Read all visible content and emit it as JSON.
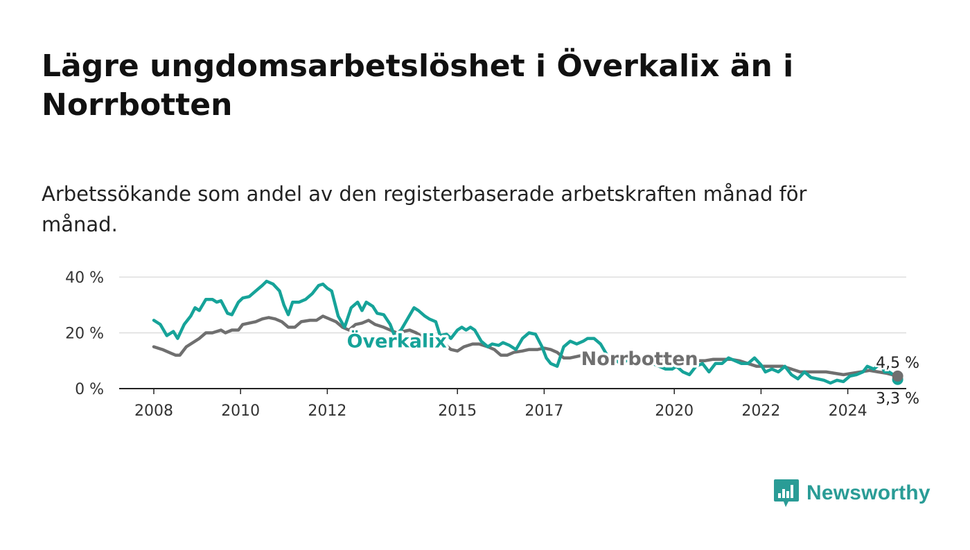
{
  "title": "Lägre ungdomsarbetslöshet i Överkalix än i Norrbotten",
  "subtitle": "Arbetssökande som andel av den registerbaserade arbetskraften månad för månad.",
  "logo": {
    "text": "Newsworthy",
    "icon": "bar-chart-speech-bubble-icon"
  },
  "colors": {
    "overkalix": "#16a399",
    "norrbotten": "#6f6f6f",
    "grid": "#dddddd",
    "axis": "#222222"
  },
  "chart_data": {
    "type": "line",
    "y_ticks": [
      0,
      20,
      40
    ],
    "y_tick_labels": [
      "0 %",
      "20 %",
      "40 %"
    ],
    "ylim": [
      0,
      40
    ],
    "x_ticks": [
      2008,
      2010,
      2012,
      2015,
      2017,
      2020,
      2022,
      2024
    ],
    "x_tick_labels": [
      "2008",
      "2010",
      "2012",
      "2015",
      "2017",
      "2020",
      "2022",
      "2024"
    ],
    "xlim": [
      2007.25,
      2025.35
    ],
    "grid": true,
    "legend": "inline labels",
    "series": [
      {
        "name": "Överkalix",
        "color": "#16a399",
        "label_year": 2012.45,
        "label_value": 17,
        "end_label": "3,3 %",
        "points": [
          [
            2008.0,
            24.5
          ],
          [
            2008.15,
            23
          ],
          [
            2008.3,
            19
          ],
          [
            2008.45,
            20.5
          ],
          [
            2008.55,
            18
          ],
          [
            2008.7,
            23
          ],
          [
            2008.85,
            26
          ],
          [
            2008.95,
            29
          ],
          [
            2009.05,
            28
          ],
          [
            2009.2,
            32
          ],
          [
            2009.35,
            32
          ],
          [
            2009.45,
            31
          ],
          [
            2009.55,
            31.5
          ],
          [
            2009.7,
            27
          ],
          [
            2009.8,
            26.5
          ],
          [
            2009.95,
            31
          ],
          [
            2010.05,
            32.5
          ],
          [
            2010.2,
            33
          ],
          [
            2010.35,
            35
          ],
          [
            2010.5,
            37
          ],
          [
            2010.6,
            38.5
          ],
          [
            2010.75,
            37.5
          ],
          [
            2010.9,
            35
          ],
          [
            2011.0,
            30
          ],
          [
            2011.1,
            26.5
          ],
          [
            2011.2,
            31
          ],
          [
            2011.35,
            31
          ],
          [
            2011.5,
            32
          ],
          [
            2011.65,
            34
          ],
          [
            2011.8,
            37
          ],
          [
            2011.9,
            37.5
          ],
          [
            2012.0,
            36
          ],
          [
            2012.1,
            35
          ],
          [
            2012.25,
            26
          ],
          [
            2012.4,
            22
          ],
          [
            2012.55,
            29
          ],
          [
            2012.7,
            31
          ],
          [
            2012.8,
            28
          ],
          [
            2012.9,
            31
          ],
          [
            2013.05,
            29.5
          ],
          [
            2013.15,
            27
          ],
          [
            2013.3,
            26.5
          ],
          [
            2013.45,
            23
          ],
          [
            2013.55,
            19
          ],
          [
            2013.7,
            21
          ],
          [
            2013.85,
            25
          ],
          [
            2014.0,
            29
          ],
          [
            2014.1,
            28
          ],
          [
            2014.25,
            26
          ],
          [
            2014.35,
            25
          ],
          [
            2014.5,
            24
          ],
          [
            2014.6,
            19
          ],
          [
            2014.75,
            19.5
          ],
          [
            2014.85,
            18
          ],
          [
            2015.0,
            21
          ],
          [
            2015.1,
            22
          ],
          [
            2015.2,
            21
          ],
          [
            2015.3,
            22
          ],
          [
            2015.4,
            21
          ],
          [
            2015.55,
            17
          ],
          [
            2015.7,
            15
          ],
          [
            2015.8,
            16
          ],
          [
            2015.95,
            15.5
          ],
          [
            2016.05,
            16.5
          ],
          [
            2016.2,
            15.5
          ],
          [
            2016.35,
            14
          ],
          [
            2016.5,
            18
          ],
          [
            2016.65,
            20
          ],
          [
            2016.8,
            19.5
          ],
          [
            2016.95,
            15
          ],
          [
            2017.05,
            11
          ],
          [
            2017.15,
            9
          ],
          [
            2017.3,
            8
          ],
          [
            2017.45,
            15
          ],
          [
            2017.6,
            17
          ],
          [
            2017.75,
            16
          ],
          [
            2017.9,
            17
          ],
          [
            2018.0,
            18
          ],
          [
            2018.15,
            18
          ],
          [
            2018.3,
            16
          ],
          [
            2018.45,
            12
          ],
          [
            2018.6,
            11
          ],
          [
            2018.75,
            9
          ],
          [
            2018.9,
            10
          ],
          [
            2019.05,
            13
          ],
          [
            2019.2,
            9
          ],
          [
            2019.35,
            10
          ],
          [
            2019.5,
            9
          ],
          [
            2019.65,
            8
          ],
          [
            2019.8,
            7
          ],
          [
            2019.95,
            7
          ],
          [
            2020.05,
            8
          ],
          [
            2020.2,
            6
          ],
          [
            2020.35,
            5
          ],
          [
            2020.5,
            8
          ],
          [
            2020.65,
            9
          ],
          [
            2020.8,
            6
          ],
          [
            2020.95,
            9
          ],
          [
            2021.1,
            9
          ],
          [
            2021.25,
            11
          ],
          [
            2021.4,
            10
          ],
          [
            2021.55,
            9
          ],
          [
            2021.7,
            9
          ],
          [
            2021.85,
            11
          ],
          [
            2022.0,
            8.5
          ],
          [
            2022.1,
            6
          ],
          [
            2022.25,
            7
          ],
          [
            2022.4,
            6
          ],
          [
            2022.55,
            8
          ],
          [
            2022.7,
            5
          ],
          [
            2022.85,
            3.5
          ],
          [
            2023.0,
            6
          ],
          [
            2023.15,
            4
          ],
          [
            2023.3,
            3.5
          ],
          [
            2023.45,
            3
          ],
          [
            2023.6,
            2
          ],
          [
            2023.75,
            3
          ],
          [
            2023.9,
            2.5
          ],
          [
            2024.05,
            4.5
          ],
          [
            2024.2,
            5
          ],
          [
            2024.35,
            6
          ],
          [
            2024.45,
            8
          ],
          [
            2024.6,
            7
          ],
          [
            2024.75,
            9
          ],
          [
            2024.85,
            6
          ],
          [
            2024.95,
            6
          ],
          [
            2025.05,
            5
          ],
          [
            2025.15,
            3.3
          ]
        ]
      },
      {
        "name": "Norrbotten",
        "color": "#6f6f6f",
        "label_year": 2017.85,
        "label_value": 10.7,
        "end_label": "4,5 %",
        "points": [
          [
            2008.0,
            15
          ],
          [
            2008.2,
            14
          ],
          [
            2008.35,
            13
          ],
          [
            2008.5,
            12
          ],
          [
            2008.6,
            12
          ],
          [
            2008.75,
            15
          ],
          [
            2008.9,
            16.5
          ],
          [
            2009.05,
            18
          ],
          [
            2009.2,
            20
          ],
          [
            2009.35,
            20
          ],
          [
            2009.55,
            21
          ],
          [
            2009.65,
            20
          ],
          [
            2009.8,
            21
          ],
          [
            2009.95,
            21
          ],
          [
            2010.05,
            23
          ],
          [
            2010.2,
            23.5
          ],
          [
            2010.35,
            24
          ],
          [
            2010.5,
            25
          ],
          [
            2010.65,
            25.5
          ],
          [
            2010.8,
            25
          ],
          [
            2010.95,
            24
          ],
          [
            2011.1,
            22
          ],
          [
            2011.25,
            22
          ],
          [
            2011.4,
            24
          ],
          [
            2011.6,
            24.5
          ],
          [
            2011.75,
            24.5
          ],
          [
            2011.9,
            26
          ],
          [
            2012.05,
            25
          ],
          [
            2012.2,
            24
          ],
          [
            2012.35,
            22
          ],
          [
            2012.5,
            21
          ],
          [
            2012.65,
            23
          ],
          [
            2012.8,
            23.5
          ],
          [
            2012.95,
            24.5
          ],
          [
            2013.1,
            23
          ],
          [
            2013.3,
            22
          ],
          [
            2013.45,
            21
          ],
          [
            2013.6,
            20
          ],
          [
            2013.75,
            20.5
          ],
          [
            2013.9,
            21
          ],
          [
            2014.05,
            20
          ],
          [
            2014.2,
            18.5
          ],
          [
            2014.35,
            18
          ],
          [
            2014.5,
            18
          ],
          [
            2014.7,
            16
          ],
          [
            2014.85,
            14
          ],
          [
            2015.0,
            13.5
          ],
          [
            2015.15,
            15
          ],
          [
            2015.35,
            16
          ],
          [
            2015.5,
            16
          ],
          [
            2015.7,
            15
          ],
          [
            2015.85,
            14
          ],
          [
            2016.0,
            12
          ],
          [
            2016.15,
            12
          ],
          [
            2016.3,
            13
          ],
          [
            2016.5,
            13.5
          ],
          [
            2016.65,
            14
          ],
          [
            2016.85,
            14
          ],
          [
            2017.0,
            14.5
          ],
          [
            2017.15,
            14
          ],
          [
            2017.3,
            13
          ],
          [
            2017.45,
            11
          ],
          [
            2017.6,
            11
          ],
          [
            2017.75,
            11.5
          ],
          [
            2017.9,
            12
          ],
          [
            2018.05,
            12
          ],
          [
            2018.2,
            11
          ],
          [
            2018.35,
            9.5
          ],
          [
            2018.5,
            9
          ],
          [
            2018.7,
            10
          ],
          [
            2018.9,
            10
          ],
          [
            2019.1,
            10
          ],
          [
            2019.3,
            10
          ],
          [
            2019.5,
            10
          ],
          [
            2019.7,
            10
          ],
          [
            2019.9,
            10
          ],
          [
            2020.1,
            10
          ],
          [
            2020.3,
            10
          ],
          [
            2020.5,
            10
          ],
          [
            2020.7,
            10
          ],
          [
            2020.9,
            10.5
          ],
          [
            2021.1,
            10.5
          ],
          [
            2021.3,
            10.5
          ],
          [
            2021.5,
            10
          ],
          [
            2021.7,
            9
          ],
          [
            2021.9,
            8
          ],
          [
            2022.1,
            8
          ],
          [
            2022.3,
            8
          ],
          [
            2022.5,
            8
          ],
          [
            2022.7,
            7
          ],
          [
            2022.9,
            6
          ],
          [
            2023.1,
            6
          ],
          [
            2023.3,
            6
          ],
          [
            2023.5,
            6
          ],
          [
            2023.7,
            5.5
          ],
          [
            2023.9,
            5
          ],
          [
            2024.1,
            5.5
          ],
          [
            2024.3,
            6
          ],
          [
            2024.5,
            6.5
          ],
          [
            2024.7,
            6
          ],
          [
            2024.9,
            5.5
          ],
          [
            2025.15,
            4.5
          ]
        ]
      }
    ]
  }
}
